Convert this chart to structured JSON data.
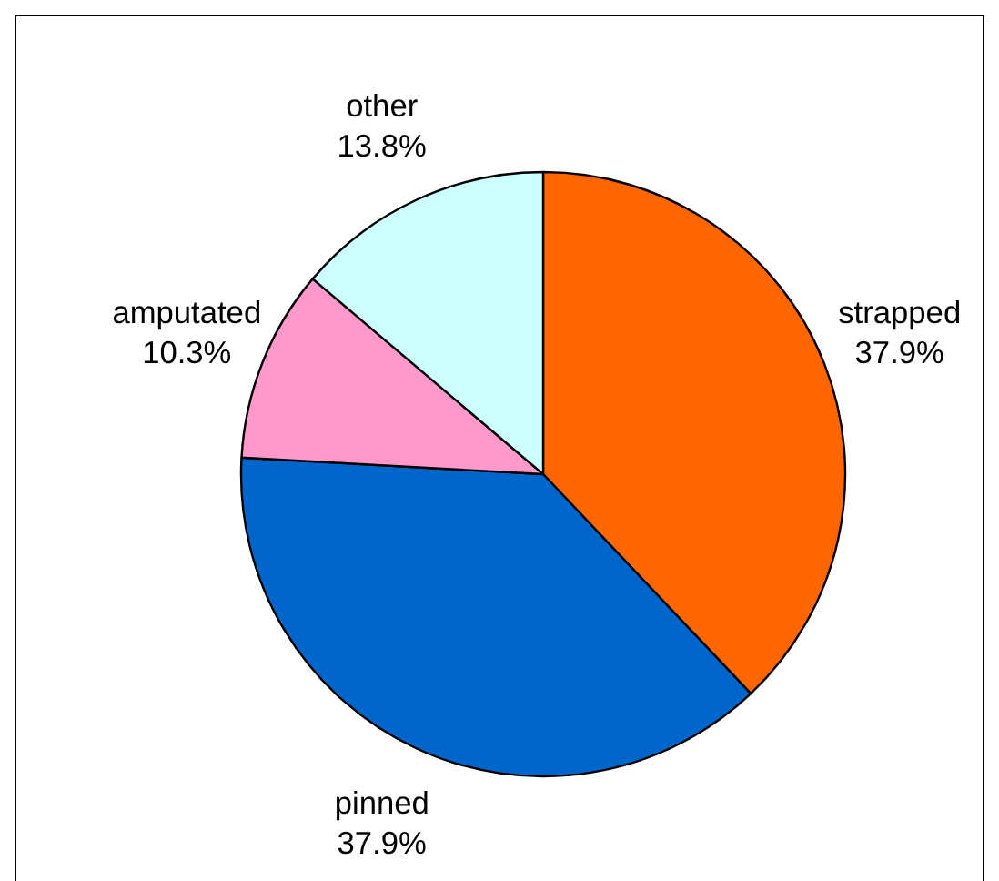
{
  "chart_data": {
    "type": "pie",
    "categories": [
      "strapped",
      "pinned",
      "amputated",
      "other"
    ],
    "values": [
      37.9,
      37.9,
      10.3,
      13.8
    ],
    "value_labels": [
      "37.9%",
      "37.9%",
      "10.3%",
      "13.8%"
    ],
    "colors": [
      "#ff6600",
      "#0066cc",
      "#ff99cc",
      "#ccffff"
    ]
  }
}
